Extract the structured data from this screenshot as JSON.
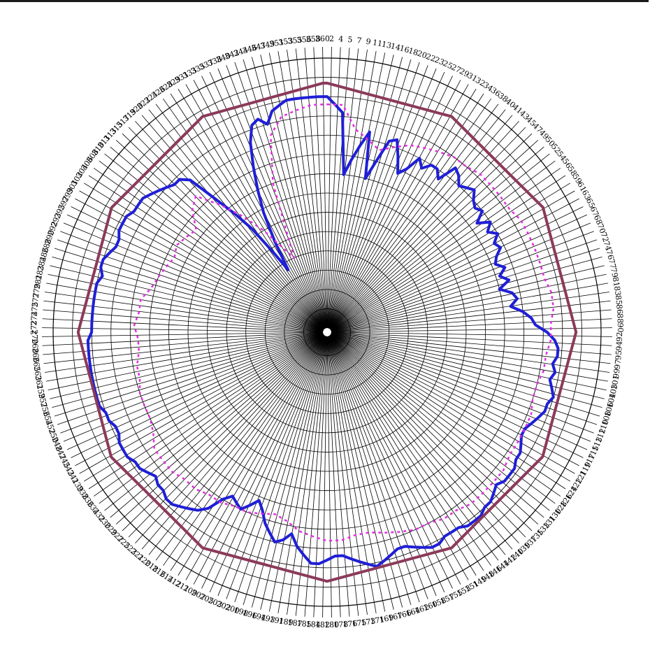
{
  "chart_data": {
    "type": "line",
    "subtype": "polar",
    "title": "",
    "grid": true,
    "legend": "none",
    "angle_unit": "degrees",
    "radial_range": [
      -70,
      0
    ],
    "radial_rings": 14,
    "angle_ticks": [
      "2",
      "4",
      "5",
      "7",
      "9",
      "11",
      "13",
      "14",
      "16",
      "18",
      "20",
      "22",
      "23",
      "25",
      "27",
      "29",
      "31",
      "32",
      "34",
      "36",
      "38",
      "40",
      "41",
      "43",
      "45",
      "47",
      "49",
      "50",
      "52",
      "54",
      "56",
      "58",
      "59",
      "61",
      "63",
      "65",
      "67",
      "68",
      "70",
      "72",
      "74",
      "76",
      "77",
      "79",
      "81",
      "83",
      "85",
      "86",
      "88",
      "90",
      "92",
      "94",
      "95",
      "97",
      "99",
      "101",
      "103",
      "104",
      "106",
      "108",
      "110",
      "112",
      "113",
      "115",
      "117",
      "119",
      "121",
      "122",
      "124",
      "126",
      "128",
      "130",
      "131",
      "133",
      "135",
      "137",
      "139",
      "140",
      "142",
      "144",
      "146",
      "148",
      "149",
      "151",
      "153",
      "155",
      "157",
      "158",
      "160",
      "162",
      "164",
      "166",
      "167",
      "169",
      "171",
      "173",
      "175",
      "176",
      "178",
      "180",
      "182",
      "184",
      "185",
      "187",
      "189",
      "191",
      "193",
      "194",
      "196",
      "198",
      "200",
      "202",
      "203",
      "205",
      "207",
      "209",
      "211",
      "212",
      "214",
      "216",
      "218",
      "220",
      "221",
      "223",
      "225",
      "227",
      "229",
      "230",
      "232",
      "234",
      "236",
      "238",
      "239",
      "241",
      "243",
      "245",
      "247",
      "248",
      "250",
      "252",
      "254",
      "256",
      "257",
      "259",
      "261",
      "263",
      "265",
      "266",
      "268",
      "270",
      "272",
      "274",
      "275",
      "277",
      "279",
      "281",
      "283",
      "284",
      "286",
      "288",
      "290",
      "292",
      "293",
      "295",
      "297",
      "299",
      "301",
      "302",
      "304",
      "306",
      "308",
      "310",
      "311",
      "313",
      "315",
      "317",
      "319",
      "320",
      "322",
      "324",
      "326",
      "328",
      "329",
      "331",
      "333",
      "335",
      "337",
      "338",
      "340",
      "342",
      "344",
      "346",
      "347",
      "349",
      "351",
      "353",
      "355",
      "356",
      "358",
      "360"
    ],
    "series": [
      {
        "color": "#1f1fd6",
        "style": "solid",
        "points": [
          [
            0,
            -10
          ],
          [
            2,
            -12
          ],
          [
            4,
            -14
          ],
          [
            6,
            -30
          ],
          [
            8,
            -26
          ],
          [
            10,
            -22
          ],
          [
            12,
            -18
          ],
          [
            14,
            -30
          ],
          [
            16,
            -25
          ],
          [
            18,
            -19
          ],
          [
            20,
            -18
          ],
          [
            22,
            -22
          ],
          [
            24,
            -26
          ],
          [
            26,
            -24
          ],
          [
            28,
            -20
          ],
          [
            30,
            -22
          ],
          [
            32,
            -20
          ],
          [
            34,
            -20
          ],
          [
            36,
            -22
          ],
          [
            38,
            -17
          ],
          [
            40,
            -18
          ],
          [
            42,
            -20
          ],
          [
            44,
            -19
          ],
          [
            46,
            -18
          ],
          [
            48,
            -20
          ],
          [
            50,
            -21
          ],
          [
            52,
            -20
          ],
          [
            54,
            -23
          ],
          [
            56,
            -20
          ],
          [
            58,
            -22
          ],
          [
            60,
            -20
          ],
          [
            62,
            -22
          ],
          [
            64,
            -21
          ],
          [
            66,
            -23
          ],
          [
            68,
            -24
          ],
          [
            70,
            -22
          ],
          [
            72,
            -24
          ],
          [
            74,
            -22
          ],
          [
            76,
            -25
          ],
          [
            78,
            -22
          ],
          [
            80,
            -21
          ],
          [
            82,
            -23
          ],
          [
            84,
            -20
          ],
          [
            86,
            -18
          ],
          [
            88,
            -17
          ],
          [
            90,
            -14
          ],
          [
            92,
            -12
          ],
          [
            94,
            -11
          ],
          [
            96,
            -11
          ],
          [
            98,
            -12
          ],
          [
            100,
            -11
          ],
          [
            102,
            -12
          ],
          [
            104,
            -11
          ],
          [
            106,
            -10
          ],
          [
            108,
            -11
          ],
          [
            110,
            -11
          ],
          [
            112,
            -12
          ],
          [
            114,
            -13
          ],
          [
            116,
            -14
          ],
          [
            118,
            -14
          ],
          [
            120,
            -13
          ],
          [
            122,
            -12
          ],
          [
            124,
            -12
          ],
          [
            126,
            -11
          ],
          [
            128,
            -11
          ],
          [
            130,
            -11
          ],
          [
            132,
            -12
          ],
          [
            134,
            -11
          ],
          [
            136,
            -10
          ],
          [
            138,
            -10
          ],
          [
            140,
            -9
          ],
          [
            142,
            -9
          ],
          [
            144,
            -9
          ],
          [
            146,
            -10
          ],
          [
            148,
            -10
          ],
          [
            150,
            -10
          ],
          [
            152,
            -9
          ],
          [
            154,
            -9
          ],
          [
            156,
            -10
          ],
          [
            158,
            -11
          ],
          [
            160,
            -12
          ],
          [
            162,
            -12
          ],
          [
            164,
            -11
          ],
          [
            166,
            -10
          ],
          [
            168,
            -9
          ],
          [
            170,
            -10
          ],
          [
            172,
            -11
          ],
          [
            174,
            -12
          ],
          [
            176,
            -13
          ],
          [
            178,
            -13
          ],
          [
            180,
            -12
          ],
          [
            182,
            -11
          ],
          [
            184,
            -11
          ],
          [
            186,
            -13
          ],
          [
            188,
            -15
          ],
          [
            190,
            -18
          ],
          [
            192,
            -16
          ],
          [
            194,
            -15
          ],
          [
            196,
            -17
          ],
          [
            198,
            -19
          ],
          [
            200,
            -22
          ],
          [
            202,
            -24
          ],
          [
            204,
            -22
          ],
          [
            206,
            -20
          ],
          [
            208,
            -21
          ],
          [
            210,
            -22
          ],
          [
            212,
            -20
          ],
          [
            214,
            -16
          ],
          [
            216,
            -14
          ],
          [
            218,
            -13
          ],
          [
            220,
            -12
          ],
          [
            222,
            -11
          ],
          [
            224,
            -11
          ],
          [
            226,
            -12
          ],
          [
            228,
            -12
          ],
          [
            230,
            -13
          ],
          [
            232,
            -12
          ],
          [
            234,
            -11
          ],
          [
            236,
            -11
          ],
          [
            238,
            -10
          ],
          [
            240,
            -10
          ],
          [
            242,
            -10
          ],
          [
            244,
            -11
          ],
          [
            246,
            -11
          ],
          [
            248,
            -10
          ],
          [
            250,
            -10
          ],
          [
            252,
            -9
          ],
          [
            254,
            -9
          ],
          [
            256,
            -9
          ],
          [
            258,
            -9
          ],
          [
            260,
            -9
          ],
          [
            262,
            -9
          ],
          [
            264,
            -9
          ],
          [
            266,
            -9
          ],
          [
            268,
            -9
          ],
          [
            270,
            -10
          ],
          [
            272,
            -10
          ],
          [
            274,
            -10
          ],
          [
            276,
            -10
          ],
          [
            278,
            -10
          ],
          [
            280,
            -10
          ],
          [
            282,
            -10
          ],
          [
            284,
            -11
          ],
          [
            286,
            -10
          ],
          [
            288,
            -10
          ],
          [
            290,
            -11
          ],
          [
            292,
            -12
          ],
          [
            294,
            -12
          ],
          [
            296,
            -11
          ],
          [
            298,
            -11
          ],
          [
            300,
            -11
          ],
          [
            302,
            -12
          ],
          [
            304,
            -12
          ],
          [
            306,
            -12
          ],
          [
            308,
            -13
          ],
          [
            310,
            -14
          ],
          [
            312,
            -15
          ],
          [
            314,
            -16
          ],
          [
            316,
            -16
          ],
          [
            318,
            -18
          ],
          [
            320,
            -26
          ],
          [
            322,
            -32
          ],
          [
            324,
            -38
          ],
          [
            326,
            -46
          ],
          [
            328,
            -52
          ],
          [
            330,
            -44
          ],
          [
            332,
            -36
          ],
          [
            334,
            -30
          ],
          [
            336,
            -24
          ],
          [
            338,
            -18
          ],
          [
            340,
            -14
          ],
          [
            342,
            -13
          ],
          [
            344,
            -15
          ],
          [
            346,
            -12
          ],
          [
            348,
            -11
          ],
          [
            350,
            -10
          ],
          [
            352,
            -10
          ],
          [
            354,
            -10
          ],
          [
            356,
            -10
          ],
          [
            358,
            -10
          ]
        ]
      },
      {
        "color": "#e22ee2",
        "style": "dashed",
        "points": [
          [
            0,
            -12
          ],
          [
            4,
            -12
          ],
          [
            8,
            -18
          ],
          [
            12,
            -20
          ],
          [
            16,
            -22
          ],
          [
            20,
            -20
          ],
          [
            24,
            -18
          ],
          [
            28,
            -17
          ],
          [
            32,
            -16
          ],
          [
            36,
            -15
          ],
          [
            40,
            -15
          ],
          [
            44,
            -14
          ],
          [
            48,
            -14
          ],
          [
            52,
            -14
          ],
          [
            56,
            -14
          ],
          [
            60,
            -13
          ],
          [
            64,
            -13
          ],
          [
            68,
            -13
          ],
          [
            72,
            -13
          ],
          [
            76,
            -13
          ],
          [
            80,
            -12
          ],
          [
            84,
            -12
          ],
          [
            88,
            -13
          ],
          [
            92,
            -13
          ],
          [
            96,
            -14
          ],
          [
            100,
            -14
          ],
          [
            104,
            -15
          ],
          [
            108,
            -15
          ],
          [
            112,
            -14
          ],
          [
            116,
            -14
          ],
          [
            120,
            -14
          ],
          [
            124,
            -14
          ],
          [
            128,
            -13
          ],
          [
            132,
            -13
          ],
          [
            136,
            -13
          ],
          [
            140,
            -13
          ],
          [
            144,
            -14
          ],
          [
            148,
            -14
          ],
          [
            152,
            -15
          ],
          [
            156,
            -15
          ],
          [
            160,
            -16
          ],
          [
            164,
            -17
          ],
          [
            168,
            -18
          ],
          [
            172,
            -18
          ],
          [
            176,
            -17
          ],
          [
            180,
            -17
          ],
          [
            184,
            -18
          ],
          [
            188,
            -19
          ],
          [
            192,
            -21
          ],
          [
            196,
            -22
          ],
          [
            200,
            -21
          ],
          [
            204,
            -20
          ],
          [
            208,
            -20
          ],
          [
            212,
            -19
          ],
          [
            216,
            -19
          ],
          [
            220,
            -18
          ],
          [
            224,
            -18
          ],
          [
            228,
            -17
          ],
          [
            232,
            -17
          ],
          [
            236,
            -17
          ],
          [
            240,
            -19
          ],
          [
            244,
            -20
          ],
          [
            248,
            -20
          ],
          [
            252,
            -20
          ],
          [
            256,
            -21
          ],
          [
            260,
            -21
          ],
          [
            264,
            -22
          ],
          [
            268,
            -22
          ],
          [
            272,
            -21
          ],
          [
            276,
            -22
          ],
          [
            280,
            -22
          ],
          [
            284,
            -24
          ],
          [
            288,
            -25
          ],
          [
            292,
            -26
          ],
          [
            296,
            -27
          ],
          [
            300,
            -26
          ],
          [
            304,
            -27
          ],
          [
            308,
            -28
          ],
          [
            312,
            -24
          ],
          [
            316,
            -22
          ],
          [
            320,
            -28
          ],
          [
            324,
            -34
          ],
          [
            328,
            -40
          ],
          [
            332,
            -46
          ],
          [
            336,
            -50
          ],
          [
            340,
            -30
          ],
          [
            344,
            -18
          ],
          [
            348,
            -14
          ],
          [
            352,
            -13
          ],
          [
            356,
            -12
          ]
        ]
      },
      {
        "color": "#8b3a5a",
        "style": "solid",
        "points": [
          [
            0,
            -6.5
          ],
          [
            30,
            -6.5
          ],
          [
            60,
            -6.4
          ],
          [
            90,
            -6.5
          ],
          [
            120,
            -6.5
          ],
          [
            150,
            -6.5
          ],
          [
            180,
            -6.5
          ],
          [
            210,
            -6.5
          ],
          [
            240,
            -6.4
          ],
          [
            270,
            -6.5
          ],
          [
            300,
            -6.5
          ],
          [
            330,
            -6.5
          ],
          [
            359,
            -6.5
          ]
        ]
      }
    ]
  }
}
